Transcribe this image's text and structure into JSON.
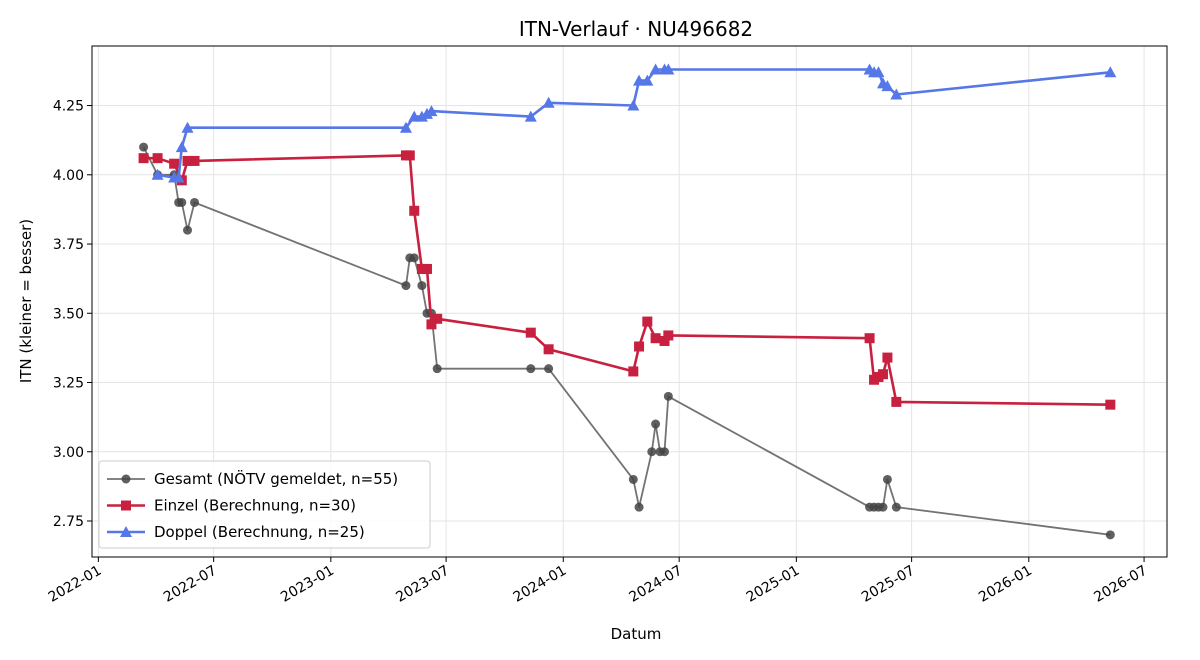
{
  "chart_data": {
    "type": "line",
    "title": "ITN-Verlauf · NU496682",
    "xlabel": "Datum",
    "ylabel": "ITN  (kleiner = besser)",
    "xlim": [
      "2021-12-22",
      "2026-08-06"
    ],
    "ylim": [
      2.62,
      4.465
    ],
    "x_ticks": [
      "2022-01",
      "2022-07",
      "2023-01",
      "2023-07",
      "2024-01",
      "2024-07",
      "2025-01",
      "2025-07",
      "2026-01",
      "2026-07"
    ],
    "y_ticks": [
      2.75,
      3.0,
      3.25,
      3.5,
      3.75,
      4.0,
      4.25
    ],
    "y_tick_labels": [
      "2.75",
      "3.00",
      "3.25",
      "3.50",
      "3.75",
      "4.00",
      "4.25"
    ],
    "grid": true,
    "legend_position": "lower-left",
    "series": [
      {
        "name": "Gesamt (NÖTV gemeldet, n=55)",
        "color": "#444444",
        "marker": "circle",
        "points": [
          [
            "2022-03-13",
            4.1
          ],
          [
            "2022-04-04",
            4.0
          ],
          [
            "2022-04-30",
            4.0
          ],
          [
            "2022-05-07",
            3.9
          ],
          [
            "2022-05-12",
            3.9
          ],
          [
            "2022-05-21",
            3.8
          ],
          [
            "2022-06-01",
            3.9
          ],
          [
            "2023-04-29",
            3.6
          ],
          [
            "2023-05-05",
            3.7
          ],
          [
            "2023-05-12",
            3.7
          ],
          [
            "2023-05-24",
            3.6
          ],
          [
            "2023-06-01",
            3.5
          ],
          [
            "2023-06-08",
            3.5
          ],
          [
            "2023-06-17",
            3.3
          ],
          [
            "2023-11-11",
            3.3
          ],
          [
            "2023-12-09",
            3.3
          ],
          [
            "2024-04-20",
            2.9
          ],
          [
            "2024-04-29",
            2.8
          ],
          [
            "2024-05-19",
            3.0
          ],
          [
            "2024-05-25",
            3.1
          ],
          [
            "2024-06-01",
            3.0
          ],
          [
            "2024-06-08",
            3.0
          ],
          [
            "2024-06-14",
            3.2
          ],
          [
            "2025-04-26",
            2.8
          ],
          [
            "2025-05-03",
            2.8
          ],
          [
            "2025-05-10",
            2.8
          ],
          [
            "2025-05-17",
            2.8
          ],
          [
            "2025-05-24",
            2.9
          ],
          [
            "2025-06-07",
            2.8
          ],
          [
            "2026-05-09",
            2.7
          ]
        ]
      },
      {
        "name": "Einzel (Berechnung, n=30)",
        "color": "#c8203f",
        "marker": "square",
        "points": [
          [
            "2022-03-13",
            4.06
          ],
          [
            "2022-04-04",
            4.06
          ],
          [
            "2022-04-30",
            4.04
          ],
          [
            "2022-05-12",
            3.98
          ],
          [
            "2022-05-21",
            4.05
          ],
          [
            "2022-06-01",
            4.05
          ],
          [
            "2023-04-29",
            4.07
          ],
          [
            "2023-05-05",
            4.07
          ],
          [
            "2023-05-12",
            3.87
          ],
          [
            "2023-05-24",
            3.66
          ],
          [
            "2023-06-01",
            3.66
          ],
          [
            "2023-06-08",
            3.46
          ],
          [
            "2023-06-17",
            3.48
          ],
          [
            "2023-11-11",
            3.43
          ],
          [
            "2023-12-09",
            3.37
          ],
          [
            "2024-04-20",
            3.29
          ],
          [
            "2024-04-29",
            3.38
          ],
          [
            "2024-05-12",
            3.47
          ],
          [
            "2024-05-25",
            3.41
          ],
          [
            "2024-06-08",
            3.4
          ],
          [
            "2024-06-14",
            3.42
          ],
          [
            "2025-04-26",
            3.41
          ],
          [
            "2025-05-03",
            3.26
          ],
          [
            "2025-05-10",
            3.27
          ],
          [
            "2025-05-17",
            3.28
          ],
          [
            "2025-05-24",
            3.34
          ],
          [
            "2025-06-07",
            3.18
          ],
          [
            "2026-05-09",
            3.17
          ]
        ]
      },
      {
        "name": "Doppel (Berechnung, n=25)",
        "color": "#5577e8",
        "marker": "triangle",
        "points": [
          [
            "2022-04-04",
            4.0
          ],
          [
            "2022-04-30",
            3.99
          ],
          [
            "2022-05-07",
            3.99
          ],
          [
            "2022-05-12",
            4.1
          ],
          [
            "2022-05-21",
            4.17
          ],
          [
            "2023-04-29",
            4.17
          ],
          [
            "2023-05-12",
            4.21
          ],
          [
            "2023-05-24",
            4.21
          ],
          [
            "2023-06-01",
            4.22
          ],
          [
            "2023-06-08",
            4.23
          ],
          [
            "2023-11-11",
            4.21
          ],
          [
            "2023-12-09",
            4.26
          ],
          [
            "2024-04-20",
            4.25
          ],
          [
            "2024-04-29",
            4.34
          ],
          [
            "2024-05-12",
            4.34
          ],
          [
            "2024-05-25",
            4.38
          ],
          [
            "2024-06-08",
            4.38
          ],
          [
            "2024-06-14",
            4.38
          ],
          [
            "2025-04-26",
            4.38
          ],
          [
            "2025-05-03",
            4.37
          ],
          [
            "2025-05-10",
            4.37
          ],
          [
            "2025-05-17",
            4.33
          ],
          [
            "2025-05-24",
            4.32
          ],
          [
            "2025-06-07",
            4.29
          ],
          [
            "2026-05-09",
            4.37
          ]
        ]
      }
    ]
  }
}
